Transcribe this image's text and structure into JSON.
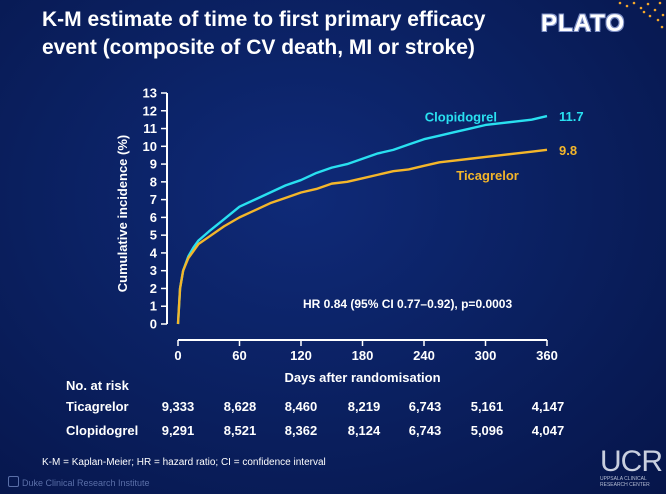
{
  "title": "K-M estimate of time to first primary efficacy event (composite of CV death, MI or stroke)",
  "brand": "PLATO",
  "colors": {
    "clopidogrel": "#29e0f0",
    "ticagrelor": "#f4b62a",
    "background": "#0a1f5e",
    "text": "#ffffff"
  },
  "chart_data": {
    "type": "line",
    "xlabel": "Days after randomisation",
    "ylabel": "Cumulative incidence (%)",
    "xlim": [
      0,
      360
    ],
    "ylim": [
      0,
      13
    ],
    "xticks": [
      0,
      60,
      120,
      180,
      240,
      300,
      360
    ],
    "yticks": [
      0,
      1,
      2,
      3,
      4,
      5,
      6,
      7,
      8,
      9,
      10,
      11,
      12,
      13
    ],
    "grid": false,
    "series": [
      {
        "name": "Clopidogrel",
        "x": [
          0,
          2,
          5,
          10,
          15,
          20,
          30,
          45,
          60,
          75,
          90,
          105,
          120,
          135,
          150,
          165,
          180,
          195,
          210,
          225,
          240,
          255,
          270,
          285,
          300,
          315,
          330,
          345,
          360
        ],
        "y": [
          0,
          2.0,
          3.0,
          3.8,
          4.3,
          4.7,
          5.2,
          5.9,
          6.6,
          7.0,
          7.4,
          7.8,
          8.1,
          8.5,
          8.8,
          9.0,
          9.3,
          9.6,
          9.8,
          10.1,
          10.4,
          10.6,
          10.8,
          11.0,
          11.2,
          11.3,
          11.4,
          11.5,
          11.7
        ],
        "end_label": "11.7"
      },
      {
        "name": "Ticagrelor",
        "x": [
          0,
          2,
          5,
          10,
          15,
          20,
          30,
          45,
          60,
          75,
          90,
          105,
          120,
          135,
          150,
          165,
          180,
          195,
          210,
          225,
          240,
          255,
          270,
          285,
          300,
          315,
          330,
          345,
          360
        ],
        "y": [
          0,
          2.0,
          3.0,
          3.7,
          4.1,
          4.5,
          4.9,
          5.5,
          6.0,
          6.4,
          6.8,
          7.1,
          7.4,
          7.6,
          7.9,
          8.0,
          8.2,
          8.4,
          8.6,
          8.7,
          8.9,
          9.1,
          9.2,
          9.3,
          9.4,
          9.5,
          9.6,
          9.7,
          9.8
        ],
        "end_label": "9.8"
      }
    ],
    "annotation": "HR 0.84 (95% CI 0.77–0.92), p=0.0003"
  },
  "at_risk": {
    "header": "No. at risk",
    "rows": [
      {
        "label": "Ticagrelor",
        "values": [
          "9,333",
          "8,628",
          "8,460",
          "8,219",
          "6,743",
          "5,161",
          "4,147"
        ]
      },
      {
        "label": "Clopidogrel",
        "values": [
          "9,291",
          "8,521",
          "8,362",
          "8,124",
          "6,743",
          "5,096",
          "4,047"
        ]
      }
    ]
  },
  "footnote": "K-M = Kaplan-Meier; HR = hazard ratio; CI = confidence interval",
  "footer_left": "Duke Clinical Research Institute",
  "footer_right": {
    "abbrev": "UCR",
    "line1": "UPPSALA CLINICAL",
    "line2": "RESEARCH CENTER"
  }
}
